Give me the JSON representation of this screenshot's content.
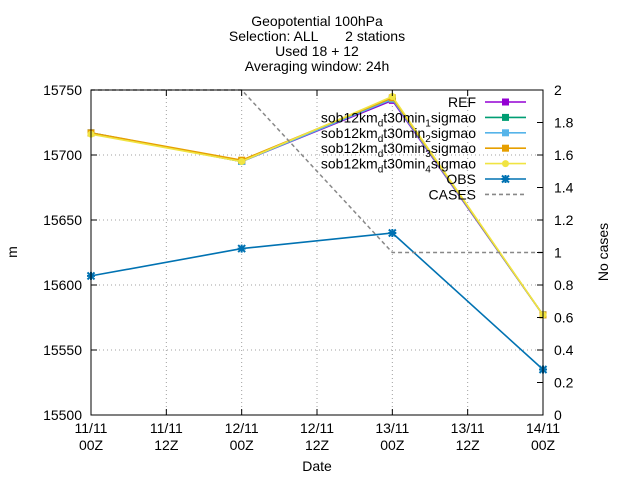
{
  "chart_data": {
    "type": "line",
    "title": [
      "Geopotential 100hPa",
      "Selection: ALL       2 stations",
      "Used 18 + 12",
      "Averaging window: 24h"
    ],
    "xlabel": "Date",
    "ylabel": "m",
    "y2label": "No cases",
    "x_ticks": [
      {
        "top": "11/11",
        "bottom": "00Z"
      },
      {
        "top": "11/11",
        "bottom": "12Z"
      },
      {
        "top": "12/11",
        "bottom": "00Z"
      },
      {
        "top": "12/11",
        "bottom": "12Z"
      },
      {
        "top": "13/11",
        "bottom": "00Z"
      },
      {
        "top": "13/11",
        "bottom": "12Z"
      },
      {
        "top": "14/11",
        "bottom": "00Z"
      }
    ],
    "y_ticks": [
      "15500",
      "15550",
      "15600",
      "15650",
      "15700",
      "15750"
    ],
    "y2_ticks": [
      "0",
      "0.2",
      "0.4",
      "0.6",
      "0.8",
      "1",
      "1.2",
      "1.4",
      "1.6",
      "1.8",
      "2"
    ],
    "ylim": [
      15500,
      15750
    ],
    "y2lim": [
      0,
      2
    ],
    "x_index": [
      0,
      2,
      4,
      6
    ],
    "grid": true,
    "legend_position": "top-right",
    "series": [
      {
        "name": "REF",
        "name_parts": [
          [
            "REF",
            ""
          ]
        ],
        "axis": "y",
        "color": "#9400d3",
        "marker": "square",
        "dash": "",
        "values": [
          15717,
          15695,
          15742,
          15577
        ]
      },
      {
        "name": "sob12km_dt30min_1sigmao",
        "name_parts": [
          [
            "sob12km",
            ""
          ],
          [
            "d",
            "sub"
          ],
          [
            "t30min",
            ""
          ],
          [
            "1",
            "sub"
          ],
          [
            "sigmao",
            ""
          ]
        ],
        "axis": "y",
        "color": "#009e73",
        "marker": "square",
        "dash": "",
        "values": [
          15717,
          15695,
          15743,
          15577
        ]
      },
      {
        "name": "sob12km_dt30min_2sigmao",
        "name_parts": [
          [
            "sob12km",
            ""
          ],
          [
            "d",
            "sub"
          ],
          [
            "t30min",
            ""
          ],
          [
            "2",
            "sub"
          ],
          [
            "sigmao",
            ""
          ]
        ],
        "axis": "y",
        "color": "#56b4e9",
        "marker": "square",
        "dash": "",
        "values": [
          15717,
          15695,
          15743,
          15577
        ]
      },
      {
        "name": "sob12km_dt30min_3sigmao",
        "name_parts": [
          [
            "sob12km",
            ""
          ],
          [
            "d",
            "sub"
          ],
          [
            "t30min",
            ""
          ],
          [
            "3",
            "sub"
          ],
          [
            "sigmao",
            ""
          ]
        ],
        "axis": "y",
        "color": "#e69f00",
        "marker": "square",
        "dash": "",
        "values": [
          15717,
          15696,
          15744,
          15577
        ]
      },
      {
        "name": "sob12km_dt30min_4sigmao",
        "name_parts": [
          [
            "sob12km",
            ""
          ],
          [
            "d",
            "sub"
          ],
          [
            "t30min",
            ""
          ],
          [
            "4",
            "sub"
          ],
          [
            "sigmao",
            ""
          ]
        ],
        "axis": "y",
        "color": "#f0e442",
        "marker": "circle",
        "dash": "",
        "values": [
          15716,
          15695,
          15745,
          15577
        ]
      },
      {
        "name": "OBS",
        "name_parts": [
          [
            "OBS",
            ""
          ]
        ],
        "axis": "y",
        "color": "#0072b2",
        "marker": "star",
        "dash": "",
        "values": [
          15607,
          15628,
          15640,
          15535
        ]
      },
      {
        "name": "CASES",
        "name_parts": [
          [
            "CASES",
            ""
          ]
        ],
        "axis": "y2",
        "color": "#888888",
        "marker": "none",
        "dash": "4,3",
        "values": [
          2,
          2,
          1,
          1
        ]
      }
    ]
  }
}
